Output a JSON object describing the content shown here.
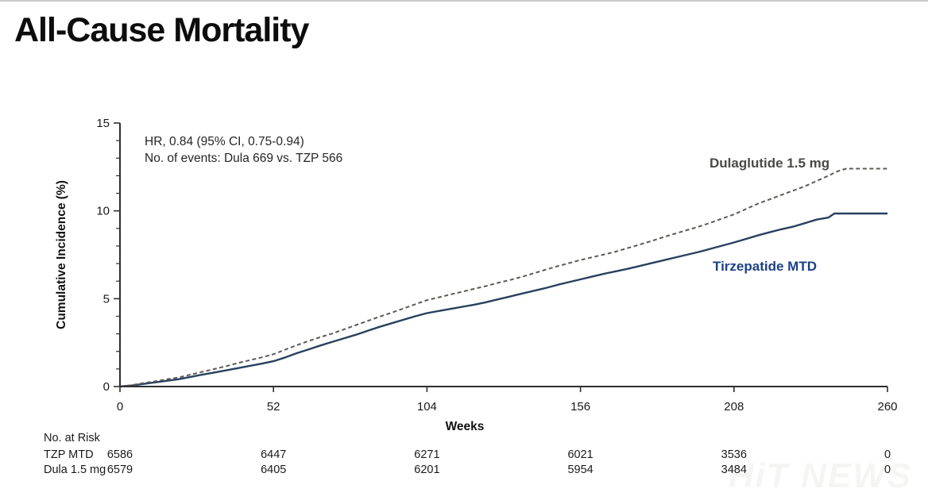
{
  "page": {
    "title": "All-Cause Mortality",
    "watermark": "HiT NEWS"
  },
  "annotation": {
    "line1": "HR, 0.84 (95% CI, 0.75-0.94)",
    "line2": "No. of events: Dula 669 vs. TZP 566"
  },
  "chart_data": {
    "type": "line",
    "title": "All-Cause Mortality",
    "xlabel": "Weeks",
    "ylabel": "Cumulative Incidence (%)",
    "xlim": [
      0,
      260
    ],
    "ylim": [
      0,
      15
    ],
    "xticks": [
      0,
      52,
      104,
      156,
      208,
      260
    ],
    "yticks": [
      0,
      5,
      10,
      15
    ],
    "y_minor_step": 1,
    "grid": false,
    "legend_position": "labels-on-plot",
    "series": [
      {
        "id": "dula",
        "name": "Dulaglutide 1.5 mg",
        "style": "dashed",
        "color": "#5b5b56",
        "label_color": "#4a4a46",
        "width": 2,
        "x": [
          0,
          4,
          8,
          12,
          16,
          20,
          24,
          28,
          32,
          36,
          40,
          44,
          48,
          52,
          56,
          60,
          64,
          68,
          72,
          76,
          80,
          84,
          88,
          92,
          96,
          100,
          104,
          108,
          112,
          116,
          120,
          124,
          128,
          132,
          136,
          140,
          144,
          148,
          152,
          156,
          160,
          164,
          168,
          172,
          176,
          180,
          184,
          188,
          192,
          196,
          200,
          204,
          208,
          212,
          216,
          220,
          224,
          228,
          232,
          236,
          240,
          243,
          246,
          260
        ],
        "y": [
          0,
          0.08,
          0.2,
          0.3,
          0.42,
          0.52,
          0.68,
          0.84,
          1.0,
          1.16,
          1.34,
          1.5,
          1.66,
          1.84,
          2.1,
          2.36,
          2.6,
          2.82,
          3.02,
          3.26,
          3.5,
          3.74,
          3.98,
          4.2,
          4.44,
          4.68,
          4.92,
          5.08,
          5.24,
          5.4,
          5.56,
          5.72,
          5.9,
          6.06,
          6.24,
          6.44,
          6.64,
          6.84,
          7.02,
          7.2,
          7.36,
          7.52,
          7.68,
          7.88,
          8.08,
          8.28,
          8.5,
          8.7,
          8.9,
          9.1,
          9.32,
          9.56,
          9.8,
          10.1,
          10.4,
          10.65,
          10.9,
          11.15,
          11.4,
          11.7,
          12.0,
          12.25,
          12.4,
          12.4
        ]
      },
      {
        "id": "tzp",
        "name": "Tirzepatide MTD",
        "style": "solid",
        "color": "#27415e",
        "label_color": "#1c4186",
        "width": 2.4,
        "x": [
          0,
          4,
          8,
          12,
          16,
          20,
          24,
          28,
          32,
          36,
          40,
          44,
          48,
          52,
          56,
          60,
          64,
          68,
          72,
          76,
          80,
          84,
          88,
          92,
          96,
          100,
          104,
          108,
          112,
          116,
          120,
          124,
          128,
          132,
          136,
          140,
          144,
          148,
          152,
          156,
          160,
          164,
          168,
          172,
          176,
          180,
          184,
          188,
          192,
          196,
          200,
          204,
          208,
          212,
          216,
          220,
          224,
          228,
          232,
          236,
          240,
          242,
          260
        ],
        "y": [
          0,
          0.06,
          0.15,
          0.24,
          0.33,
          0.42,
          0.55,
          0.68,
          0.8,
          0.92,
          1.05,
          1.18,
          1.3,
          1.44,
          1.66,
          1.9,
          2.12,
          2.34,
          2.55,
          2.75,
          2.95,
          3.18,
          3.4,
          3.6,
          3.8,
          4.0,
          4.18,
          4.3,
          4.42,
          4.54,
          4.66,
          4.8,
          4.96,
          5.12,
          5.28,
          5.44,
          5.6,
          5.78,
          5.94,
          6.1,
          6.26,
          6.42,
          6.56,
          6.7,
          6.86,
          7.02,
          7.18,
          7.34,
          7.5,
          7.66,
          7.84,
          8.02,
          8.2,
          8.4,
          8.6,
          8.78,
          8.95,
          9.1,
          9.3,
          9.5,
          9.62,
          9.85,
          9.85
        ]
      }
    ],
    "annotations": [
      "HR, 0.84 (95% CI, 0.75-0.94)",
      "No. of events: Dula 669 vs. TZP 566"
    ]
  },
  "risk_table": {
    "header": "No. at Risk",
    "weeks": [
      0,
      52,
      104,
      156,
      208,
      260
    ],
    "rows": [
      {
        "label": "TZP MTD",
        "values": [
          "6586",
          "6447",
          "6271",
          "6021",
          "3536",
          "0"
        ]
      },
      {
        "label": "Dula 1.5 mg",
        "values": [
          "6579",
          "6405",
          "6201",
          "5954",
          "3484",
          "0"
        ]
      }
    ]
  }
}
